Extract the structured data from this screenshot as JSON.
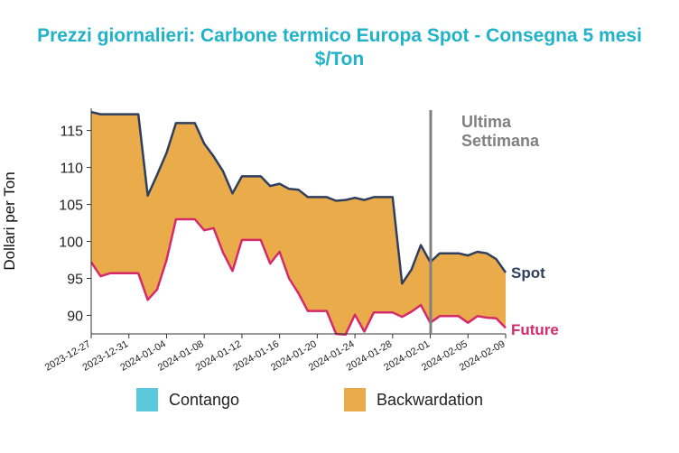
{
  "title_line1": "Prezzi giornalieri: Carbone termico Europa Spot - Consegna 5 mesi",
  "title_line2": "$/Ton",
  "colors": {
    "title": "#1fb2c9",
    "spot": "#2f3f5e",
    "future": "#d42a6b",
    "backwardation": "#eaab4a",
    "contango": "#5bc8dc",
    "vline": "#808080"
  },
  "chart_data": {
    "type": "area",
    "ylabel": "Dollari per Ton",
    "ylim": [
      87.5,
      118
    ],
    "yticks": [
      90,
      95,
      100,
      105,
      110,
      115
    ],
    "xlim": [
      "2023-12-27",
      "2024-02-09"
    ],
    "xticks": [
      "2023-12-27",
      "2023-12-31",
      "2024-01-04",
      "2024-01-08",
      "2024-01-12",
      "2024-01-16",
      "2024-01-20",
      "2024-01-24",
      "2024-01-28",
      "2024-02-01",
      "2024-02-05",
      "2024-02-09"
    ],
    "vline": {
      "x": "2024-02-02",
      "label_line1": "Ultima",
      "label_line2": "Settimana"
    },
    "series": [
      {
        "name": "Spot",
        "points": [
          [
            "2023-12-27",
            117.5
          ],
          [
            "2023-12-28",
            117.2
          ],
          [
            "2023-12-29",
            117.2
          ],
          [
            "2023-12-30",
            117.2
          ],
          [
            "2023-12-31",
            117.2
          ],
          [
            "2024-01-01",
            117.2
          ],
          [
            "2024-01-02",
            106.2
          ],
          [
            "2024-01-03",
            109
          ],
          [
            "2024-01-04",
            112
          ],
          [
            "2024-01-05",
            116
          ],
          [
            "2024-01-06",
            116
          ],
          [
            "2024-01-07",
            116
          ],
          [
            "2024-01-08",
            113.2
          ],
          [
            "2024-01-09",
            111.5
          ],
          [
            "2024-01-10",
            109.5
          ],
          [
            "2024-01-11",
            106.5
          ],
          [
            "2024-01-12",
            108.8
          ],
          [
            "2024-01-13",
            108.8
          ],
          [
            "2024-01-14",
            108.8
          ],
          [
            "2024-01-15",
            107.5
          ],
          [
            "2024-01-16",
            107.8
          ],
          [
            "2024-01-17",
            107.1
          ],
          [
            "2024-01-18",
            107
          ],
          [
            "2024-01-19",
            106
          ],
          [
            "2024-01-20",
            106
          ],
          [
            "2024-01-21",
            106
          ],
          [
            "2024-01-22",
            105.5
          ],
          [
            "2024-01-23",
            105.6
          ],
          [
            "2024-01-24",
            105.9
          ],
          [
            "2024-01-25",
            105.6
          ],
          [
            "2024-01-26",
            106
          ],
          [
            "2024-01-27",
            106
          ],
          [
            "2024-01-28",
            106
          ],
          [
            "2024-01-29",
            94.3
          ],
          [
            "2024-01-30",
            96.2
          ],
          [
            "2024-01-31",
            99.5
          ],
          [
            "2024-02-01",
            97.2
          ],
          [
            "2024-02-02",
            98.4
          ],
          [
            "2024-02-03",
            98.4
          ],
          [
            "2024-02-04",
            98.4
          ],
          [
            "2024-02-05",
            98.1
          ],
          [
            "2024-02-06",
            98.6
          ],
          [
            "2024-02-07",
            98.4
          ],
          [
            "2024-02-08",
            97.6
          ],
          [
            "2024-02-09",
            95.8
          ]
        ]
      },
      {
        "name": "Future",
        "points": [
          [
            "2023-12-27",
            97.2
          ],
          [
            "2023-12-28",
            95.3
          ],
          [
            "2023-12-29",
            95.7
          ],
          [
            "2023-12-30",
            95.7
          ],
          [
            "2023-12-31",
            95.7
          ],
          [
            "2024-01-01",
            95.7
          ],
          [
            "2024-01-02",
            92.1
          ],
          [
            "2024-01-03",
            93.5
          ],
          [
            "2024-01-04",
            97.5
          ],
          [
            "2024-01-05",
            103
          ],
          [
            "2024-01-06",
            103
          ],
          [
            "2024-01-07",
            103
          ],
          [
            "2024-01-08",
            101.5
          ],
          [
            "2024-01-09",
            101.8
          ],
          [
            "2024-01-10",
            98.5
          ],
          [
            "2024-01-11",
            96
          ],
          [
            "2024-01-12",
            100.2
          ],
          [
            "2024-01-13",
            100.2
          ],
          [
            "2024-01-14",
            100.2
          ],
          [
            "2024-01-15",
            97
          ],
          [
            "2024-01-16",
            98.6
          ],
          [
            "2024-01-17",
            95
          ],
          [
            "2024-01-18",
            93
          ],
          [
            "2024-01-19",
            90.6
          ],
          [
            "2024-01-20",
            90.6
          ],
          [
            "2024-01-21",
            90.6
          ],
          [
            "2024-01-22",
            87.5
          ],
          [
            "2024-01-23",
            87.4
          ],
          [
            "2024-01-24",
            90.1
          ],
          [
            "2024-01-25",
            87.8
          ],
          [
            "2024-01-26",
            90.4
          ],
          [
            "2024-01-27",
            90.4
          ],
          [
            "2024-01-28",
            90.4
          ],
          [
            "2024-01-29",
            89.8
          ],
          [
            "2024-01-30",
            90.5
          ],
          [
            "2024-01-31",
            91.4
          ],
          [
            "2024-02-01",
            89
          ],
          [
            "2024-02-02",
            89.9
          ],
          [
            "2024-02-03",
            89.9
          ],
          [
            "2024-02-04",
            89.9
          ],
          [
            "2024-02-05",
            89
          ],
          [
            "2024-02-06",
            89.9
          ],
          [
            "2024-02-07",
            89.7
          ],
          [
            "2024-02-08",
            89.6
          ],
          [
            "2024-02-09",
            88.3
          ]
        ]
      }
    ],
    "legend": [
      {
        "label": "Contango",
        "color": "#5bc8dc"
      },
      {
        "label": "Backwardation",
        "color": "#eaab4a"
      }
    ]
  }
}
